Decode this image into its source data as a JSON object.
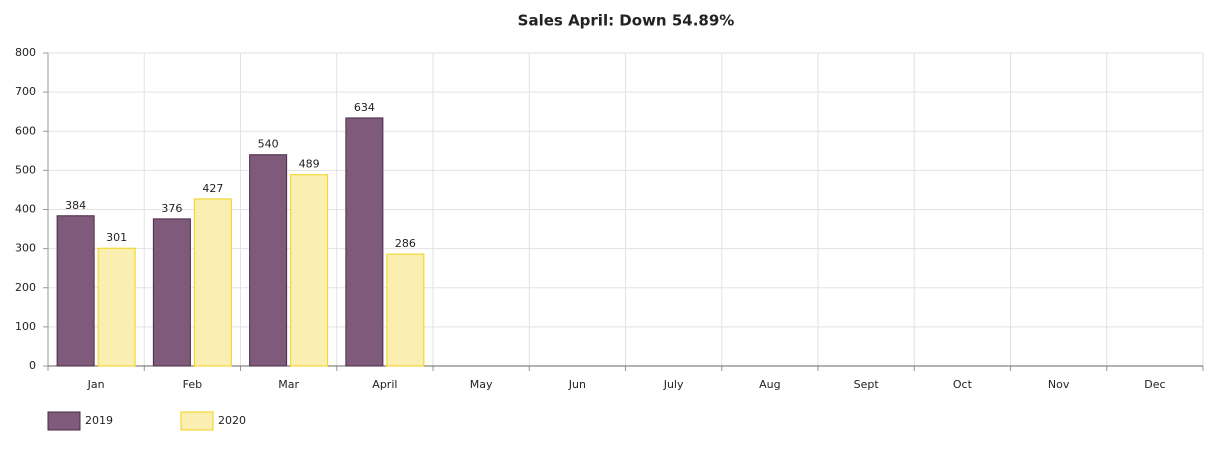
{
  "chart_data": {
    "type": "bar",
    "title": "Sales April: Down 54.89%",
    "categories": [
      "Jan",
      "Feb",
      "Mar",
      "April",
      "May",
      "Jun",
      "July",
      "Aug",
      "Sept",
      "Oct",
      "Nov",
      "Dec"
    ],
    "series": [
      {
        "name": "2019",
        "color": "#7f5a7a",
        "edgecolor": "#4a2a46",
        "values": [
          384,
          376,
          540,
          634,
          null,
          null,
          null,
          null,
          null,
          null,
          null,
          null
        ]
      },
      {
        "name": "2020",
        "color": "#faeeb0",
        "edgecolor": "#f2d21a",
        "values": [
          301,
          427,
          489,
          286,
          null,
          null,
          null,
          null,
          null,
          null,
          null,
          null
        ]
      }
    ],
    "ylim": [
      0,
      800
    ],
    "yticks": [
      0,
      100,
      200,
      300,
      400,
      500,
      600,
      700,
      800
    ],
    "grid": true,
    "legend": "bottom-left"
  }
}
